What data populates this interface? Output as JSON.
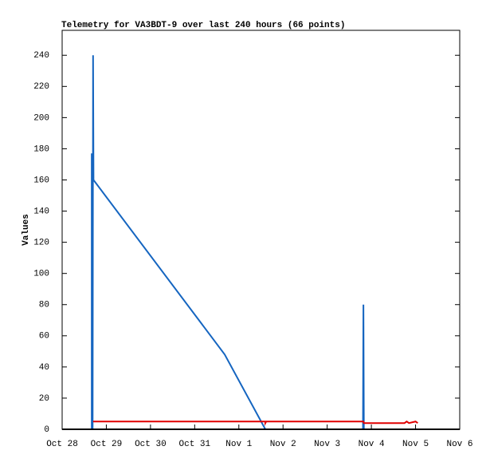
{
  "chart_data": {
    "type": "line",
    "title": "Telemetry for VA3BDT-9 over last 240 hours (66 points)",
    "y_label": "Values",
    "xlim": [
      0,
      9
    ],
    "xticks": [
      {
        "value": 0,
        "label": "Oct 28"
      },
      {
        "value": 1,
        "label": "Oct 29"
      },
      {
        "value": 2,
        "label": "Oct 30"
      },
      {
        "value": 3,
        "label": "Oct 31"
      },
      {
        "value": 4,
        "label": "Nov 1"
      },
      {
        "value": 5,
        "label": "Nov 2"
      },
      {
        "value": 6,
        "label": "Nov 3"
      },
      {
        "value": 7,
        "label": "Nov 4"
      },
      {
        "value": 8,
        "label": "Nov 5"
      },
      {
        "value": 9,
        "label": "Nov 6"
      }
    ],
    "ylim": [
      0,
      256
    ],
    "yticks": [
      0,
      20,
      40,
      60,
      80,
      100,
      120,
      140,
      160,
      180,
      200,
      220,
      240
    ],
    "series": [
      {
        "color": "#1565c0",
        "x": [
          0.67,
          0.67,
          0.69,
          0.7,
          0.71,
          3.68,
          4.6,
          6.81,
          6.82,
          6.83,
          8.0
        ],
        "values": [
          0,
          177,
          0,
          240,
          160,
          48,
          0,
          0,
          80,
          0,
          0
        ]
      },
      {
        "color": "#e00000",
        "x": [
          0.7,
          4.6,
          4.6,
          4.62,
          6.82,
          6.83,
          7.75,
          7.8,
          7.85,
          8.0,
          8.05
        ],
        "values": [
          5,
          5,
          4,
          5,
          5,
          4,
          4,
          5,
          4,
          5,
          4
        ]
      }
    ]
  }
}
